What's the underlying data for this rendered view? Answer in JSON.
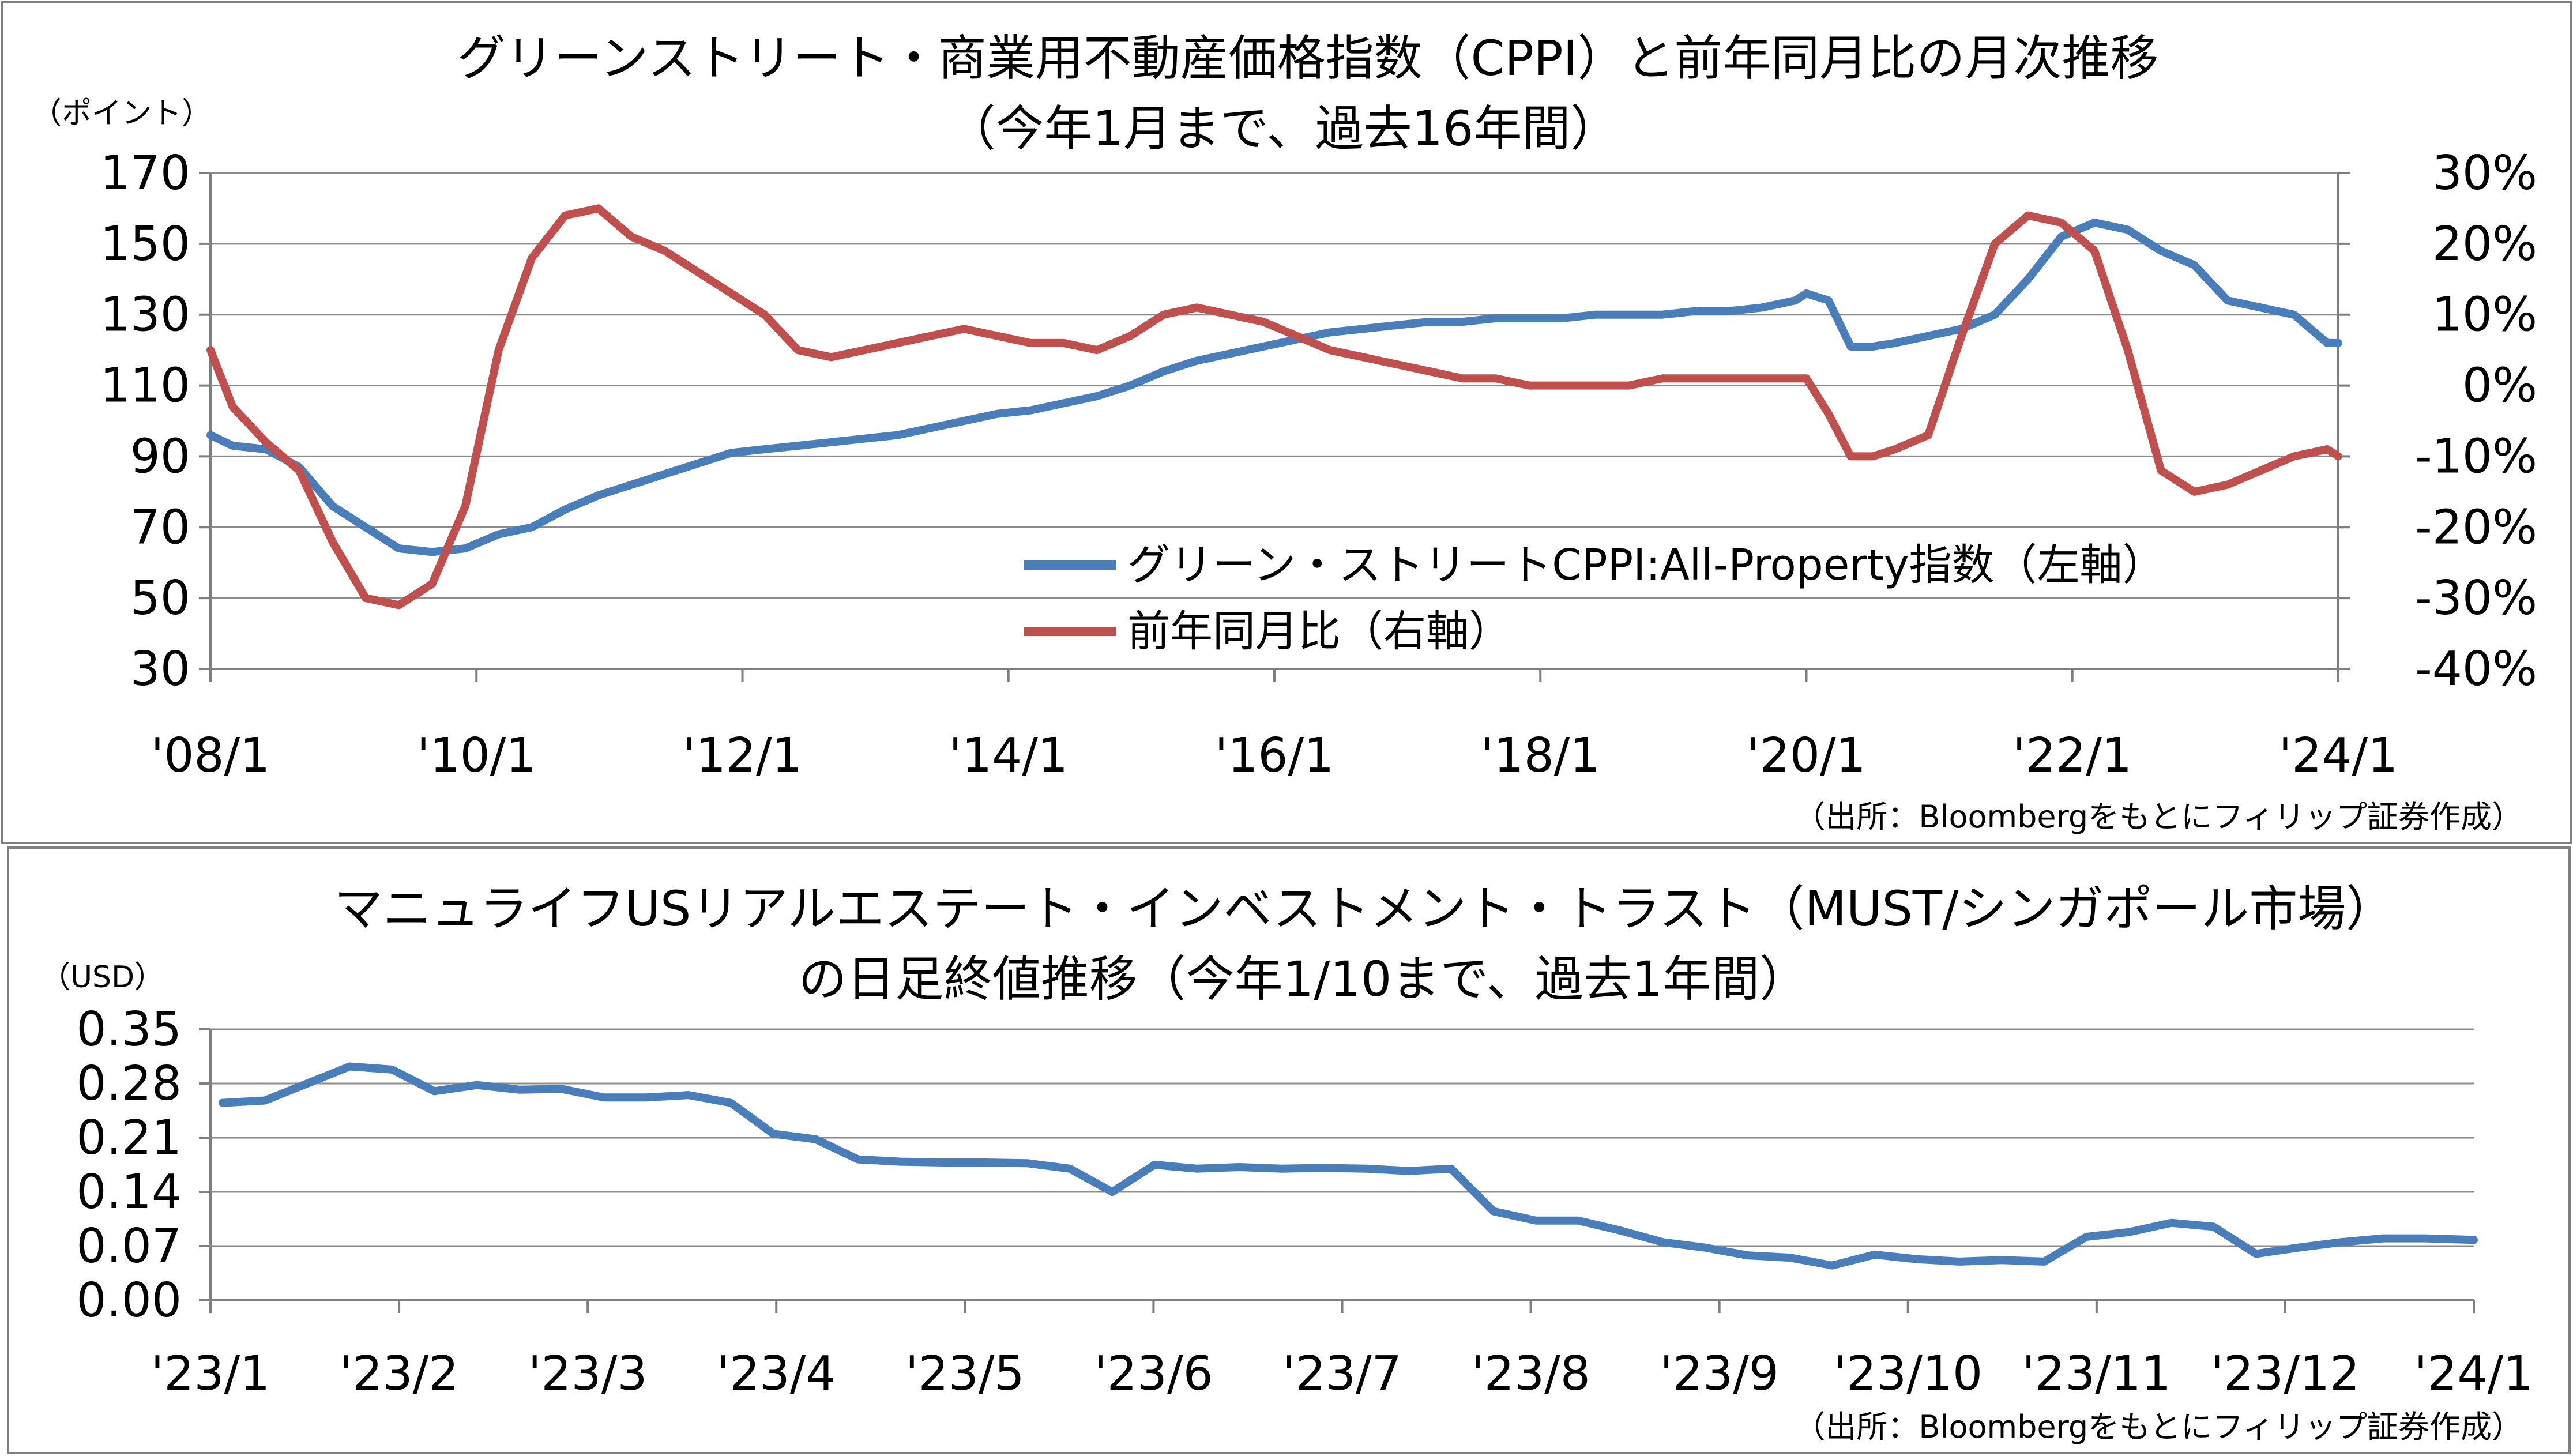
{
  "colors": {
    "blue": "#4a7ebb",
    "red": "#c0504d"
  },
  "chart_data": [
    {
      "type": "line",
      "title": "グリーンストリート・商業用不動産価格指数（CPPI）と前年同月比の月次推移",
      "subtitle": "（今年1月まで、過去16年間）",
      "ylabel_left": "（ポイント）",
      "left_ticks": [
        "170",
        "150",
        "130",
        "110",
        "90",
        "70",
        "50",
        "30"
      ],
      "left_ylim": [
        30,
        170
      ],
      "right_ticks": [
        "30%",
        "20%",
        "10%",
        "0%",
        "-10%",
        "-20%",
        "-30%",
        "-40%"
      ],
      "right_ylim": [
        -40,
        30
      ],
      "x_tick_labels": [
        "'08/1",
        "'10/1",
        "'12/1",
        "'14/1",
        "'16/1",
        "'18/1",
        "'20/1",
        "'22/1",
        "'24/1"
      ],
      "x_range": [
        "2008-01",
        "2024-01"
      ],
      "source": "（出所：Bloombergをもとにフィリップ証券作成）",
      "legend": "bottom-center inside plot",
      "series": [
        {
          "name": "グリーン・ストリートCPPI:All-Property指数（左軸）",
          "axis": "left",
          "color": "#4a7ebb",
          "x": [
            "2008-01",
            "2008-03",
            "2008-06",
            "2008-09",
            "2008-12",
            "2009-03",
            "2009-06",
            "2009-09",
            "2009-12",
            "2010-03",
            "2010-06",
            "2010-09",
            "2010-12",
            "2011-03",
            "2011-06",
            "2011-09",
            "2011-12",
            "2012-03",
            "2012-06",
            "2012-09",
            "2012-12",
            "2013-03",
            "2013-06",
            "2013-09",
            "2013-12",
            "2014-03",
            "2014-06",
            "2014-09",
            "2014-12",
            "2015-03",
            "2015-06",
            "2015-09",
            "2015-12",
            "2016-03",
            "2016-06",
            "2016-09",
            "2016-12",
            "2017-03",
            "2017-06",
            "2017-09",
            "2017-12",
            "2018-03",
            "2018-06",
            "2018-09",
            "2018-12",
            "2019-03",
            "2019-06",
            "2019-09",
            "2019-12",
            "2020-01",
            "2020-03",
            "2020-05",
            "2020-07",
            "2020-09",
            "2020-12",
            "2021-03",
            "2021-06",
            "2021-09",
            "2021-12",
            "2022-03",
            "2022-06",
            "2022-09",
            "2022-12",
            "2023-03",
            "2023-06",
            "2023-09",
            "2023-12",
            "2024-01"
          ],
          "values": [
            96,
            93,
            92,
            87,
            76,
            70,
            64,
            63,
            64,
            68,
            70,
            75,
            79,
            82,
            85,
            88,
            91,
            92,
            93,
            94,
            95,
            96,
            98,
            100,
            102,
            103,
            105,
            107,
            110,
            114,
            117,
            119,
            121,
            123,
            125,
            126,
            127,
            128,
            128,
            129,
            129,
            129,
            130,
            130,
            130,
            131,
            131,
            132,
            134,
            136,
            134,
            121,
            121,
            122,
            124,
            126,
            130,
            140,
            152,
            156,
            154,
            148,
            144,
            134,
            132,
            130,
            122,
            122
          ]
        },
        {
          "name": "前年同月比（右軸）",
          "axis": "right",
          "color": "#c0504d",
          "x": [
            "2008-01",
            "2008-03",
            "2008-06",
            "2008-09",
            "2008-12",
            "2009-03",
            "2009-06",
            "2009-09",
            "2009-12",
            "2010-03",
            "2010-06",
            "2010-09",
            "2010-12",
            "2011-03",
            "2011-06",
            "2011-09",
            "2011-12",
            "2012-03",
            "2012-06",
            "2012-09",
            "2012-12",
            "2013-03",
            "2013-06",
            "2013-09",
            "2013-12",
            "2014-03",
            "2014-06",
            "2014-09",
            "2014-12",
            "2015-03",
            "2015-06",
            "2015-09",
            "2015-12",
            "2016-03",
            "2016-06",
            "2016-09",
            "2016-12",
            "2017-03",
            "2017-06",
            "2017-09",
            "2017-12",
            "2018-03",
            "2018-06",
            "2018-09",
            "2018-12",
            "2019-03",
            "2019-06",
            "2019-09",
            "2019-12",
            "2020-01",
            "2020-03",
            "2020-05",
            "2020-07",
            "2020-09",
            "2020-12",
            "2021-03",
            "2021-06",
            "2021-09",
            "2021-12",
            "2022-03",
            "2022-06",
            "2022-09",
            "2022-12",
            "2023-03",
            "2023-06",
            "2023-09",
            "2023-12",
            "2024-01"
          ],
          "values": [
            5,
            -3,
            -8,
            -12,
            -22,
            -30,
            -31,
            -28,
            -17,
            5,
            18,
            24,
            25,
            21,
            19,
            16,
            13,
            10,
            5,
            4,
            5,
            6,
            7,
            8,
            7,
            6,
            6,
            5,
            7,
            10,
            11,
            10,
            9,
            7,
            5,
            4,
            3,
            2,
            1,
            1,
            0,
            0,
            0,
            0,
            1,
            1,
            1,
            1,
            1,
            1,
            -4,
            -10,
            -10,
            -9,
            -7,
            7,
            20,
            24,
            23,
            19,
            5,
            -12,
            -15,
            -14,
            -12,
            -10,
            -9,
            -10
          ]
        }
      ]
    },
    {
      "type": "line",
      "title": "マニュライフUSリアルエステート・インベストメント・トラスト（MUST/シンガポール市場）",
      "subtitle": "の日足終値推移（今年1/10まで、過去1年間）",
      "ylabel": "（USD）",
      "y_ticks": [
        "0.35",
        "0.28",
        "0.21",
        "0.14",
        "0.07",
        "0.00"
      ],
      "ylim": [
        0,
        0.35
      ],
      "x_tick_labels": [
        "'23/1",
        "'23/2",
        "'23/3",
        "'23/4",
        "'23/5",
        "'23/6",
        "'23/7",
        "'23/8",
        "'23/9",
        "'23/10",
        "'23/11",
        "'23/12",
        "'24/1"
      ],
      "x_range": [
        "2023-01-01",
        "2024-01-10"
      ],
      "source": "（出所：Bloombergをもとにフィリップ証券作成）",
      "series": [
        {
          "color": "#4a7ebb",
          "x": [
            "2023-01-03",
            "2023-01-10",
            "2023-01-17",
            "2023-01-24",
            "2023-01-31",
            "2023-02-07",
            "2023-02-14",
            "2023-02-21",
            "2023-02-28",
            "2023-03-07",
            "2023-03-14",
            "2023-03-21",
            "2023-03-28",
            "2023-04-04",
            "2023-04-11",
            "2023-04-18",
            "2023-04-25",
            "2023-05-02",
            "2023-05-09",
            "2023-05-16",
            "2023-05-23",
            "2023-05-30",
            "2023-06-06",
            "2023-06-13",
            "2023-06-20",
            "2023-06-27",
            "2023-07-04",
            "2023-07-11",
            "2023-07-18",
            "2023-07-25",
            "2023-08-01",
            "2023-08-08",
            "2023-08-15",
            "2023-08-22",
            "2023-08-29",
            "2023-09-05",
            "2023-09-12",
            "2023-09-19",
            "2023-09-26",
            "2023-10-03",
            "2023-10-10",
            "2023-10-17",
            "2023-10-24",
            "2023-10-31",
            "2023-11-07",
            "2023-11-14",
            "2023-11-21",
            "2023-11-28",
            "2023-12-05",
            "2023-12-12",
            "2023-12-19",
            "2023-12-26",
            "2024-01-02",
            "2024-01-10"
          ],
          "values": [
            0.255,
            0.258,
            0.28,
            0.302,
            0.298,
            0.27,
            0.278,
            0.272,
            0.273,
            0.262,
            0.262,
            0.265,
            0.255,
            0.215,
            0.208,
            0.182,
            0.179,
            0.178,
            0.178,
            0.177,
            0.17,
            0.14,
            0.175,
            0.17,
            0.172,
            0.17,
            0.171,
            0.17,
            0.167,
            0.17,
            0.115,
            0.103,
            0.103,
            0.09,
            0.075,
            0.068,
            0.058,
            0.055,
            0.045,
            0.059,
            0.053,
            0.05,
            0.052,
            0.05,
            0.082,
            0.088,
            0.1,
            0.095,
            0.06,
            0.068,
            0.075,
            0.08,
            0.08,
            0.078
          ]
        }
      ]
    }
  ]
}
